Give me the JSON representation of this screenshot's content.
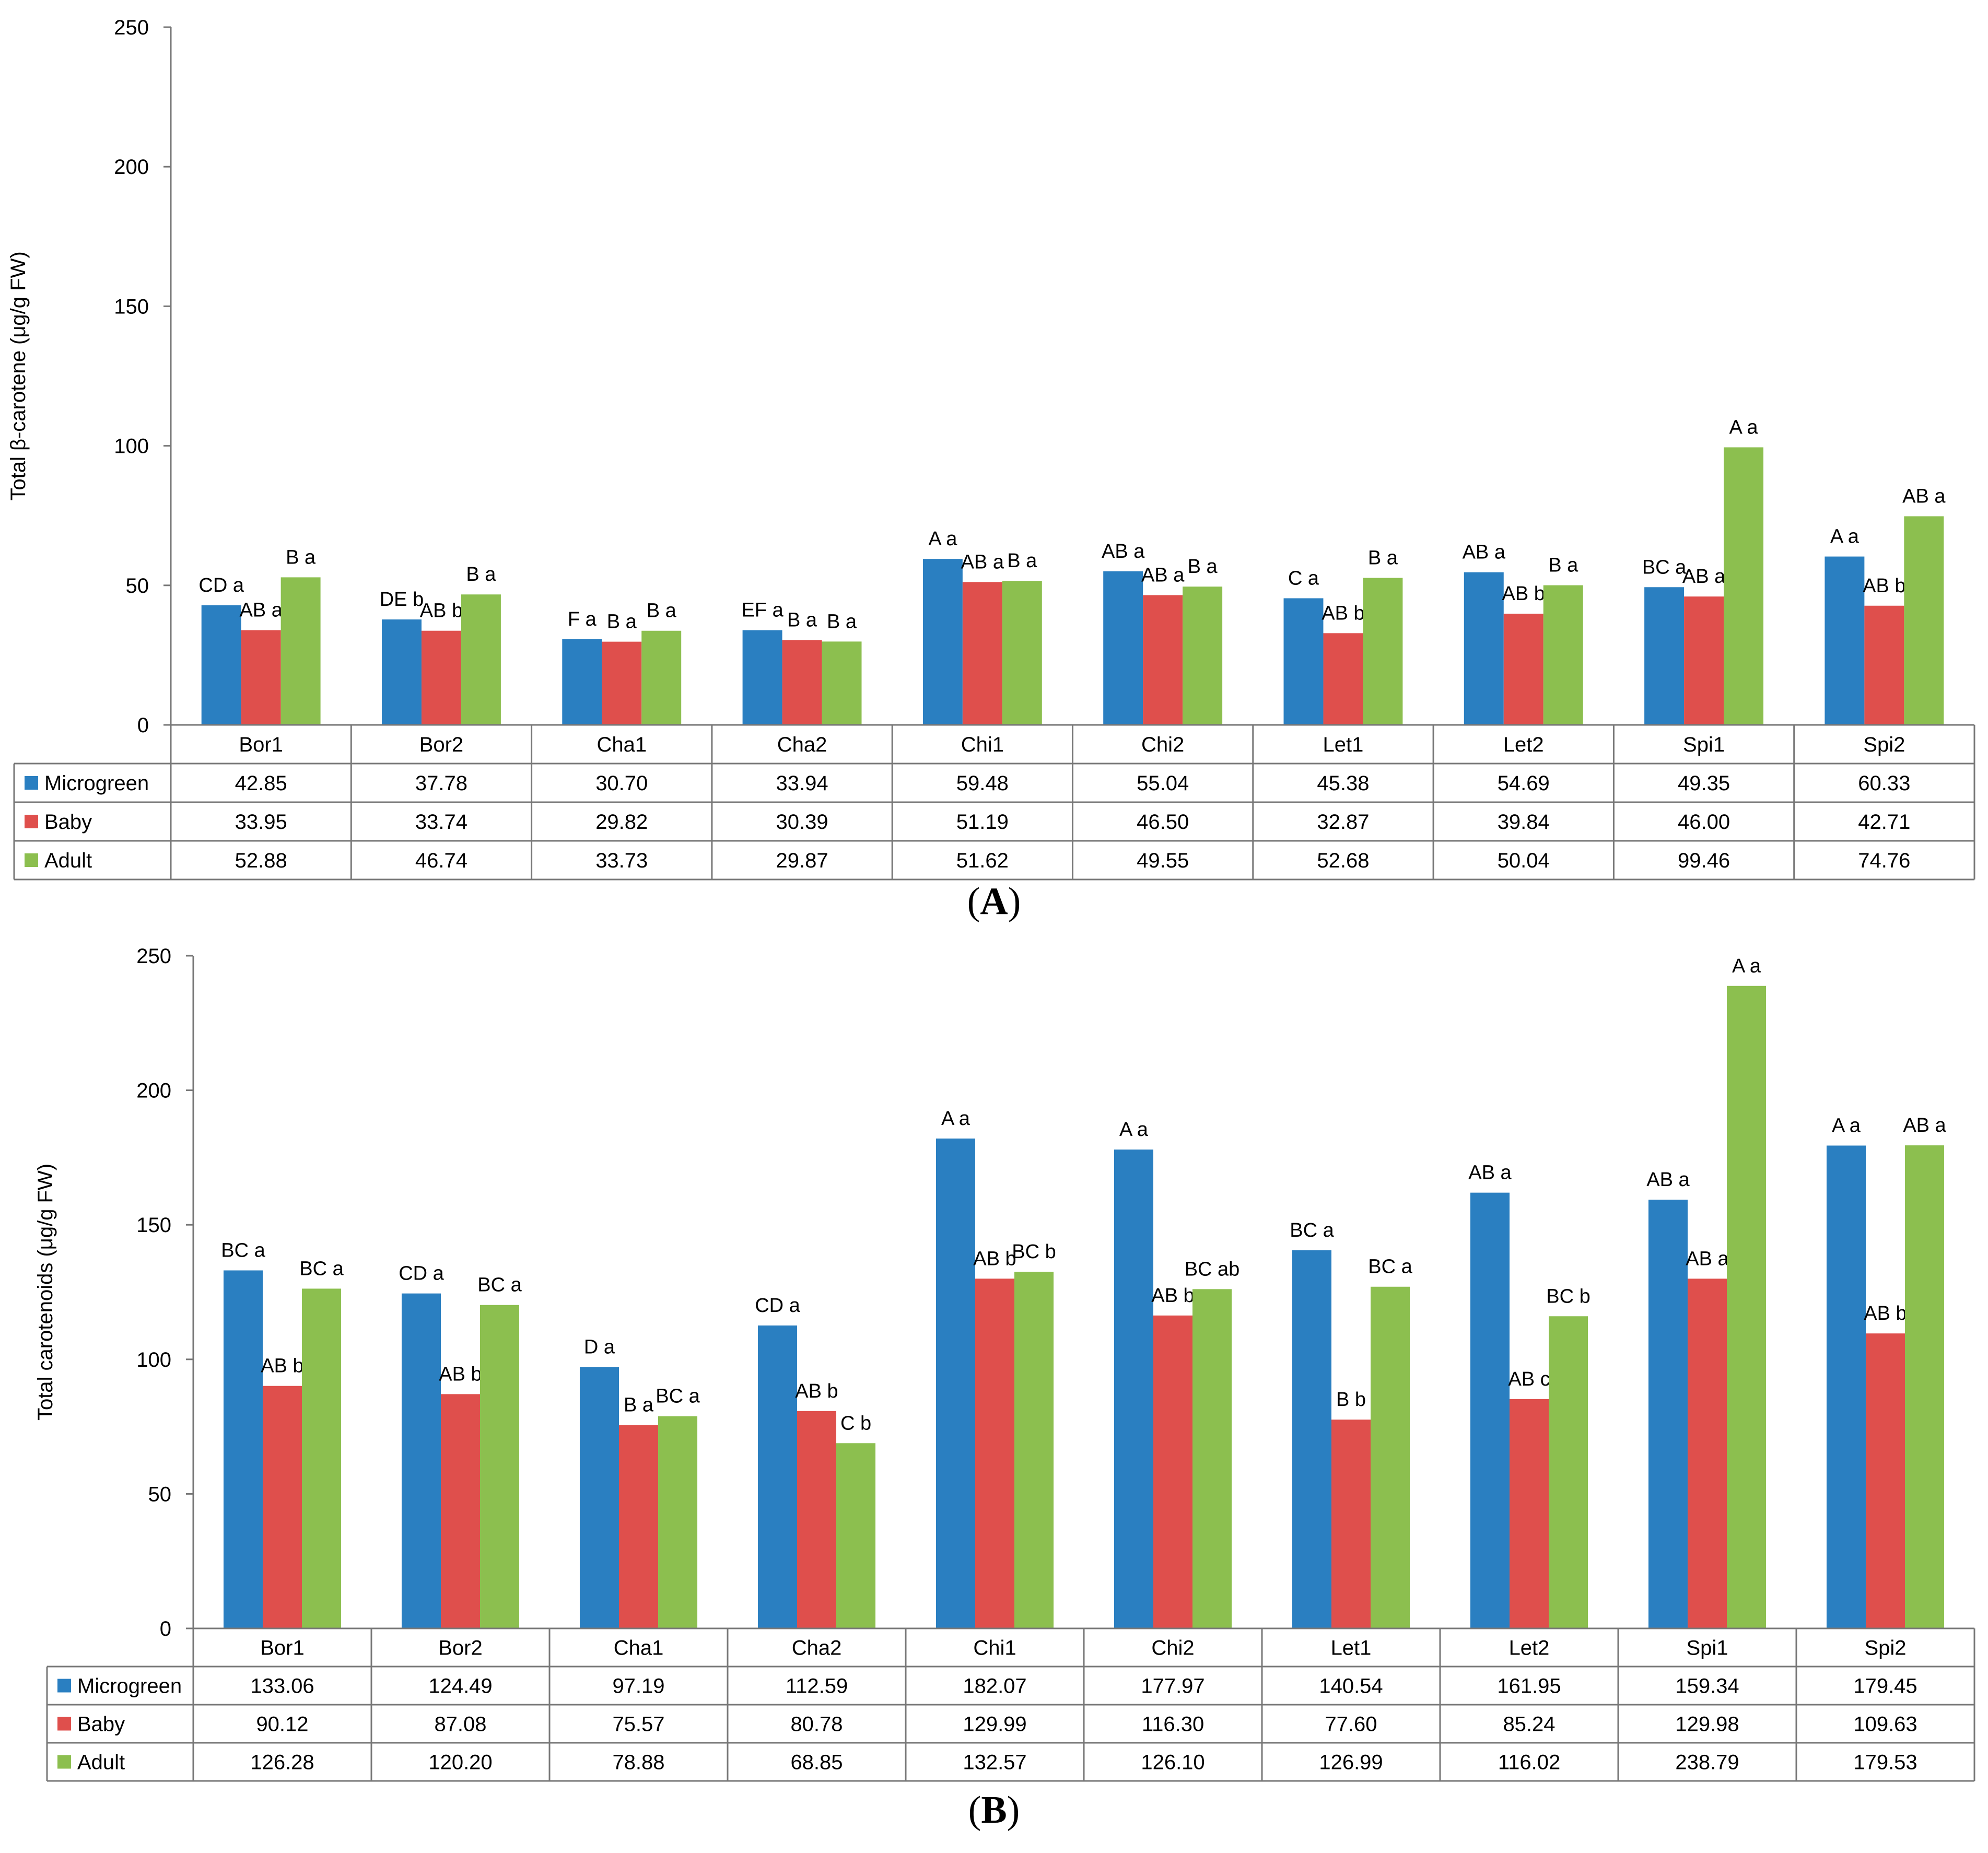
{
  "chart_data": [
    {
      "type": "bar",
      "panel": "A",
      "caption": {
        "open": "(",
        "letter": "A",
        "close": ")"
      },
      "ylabel": "Total β-carotene (μg/g FW)",
      "ylim": [
        0,
        250
      ],
      "yticks": [
        0,
        50,
        100,
        150,
        200,
        250
      ],
      "categories": [
        "Bor1",
        "Bor2",
        "Cha1",
        "Cha2",
        "Chi1",
        "Chi2",
        "Let1",
        "Let2",
        "Spi1",
        "Spi2"
      ],
      "series": [
        {
          "name": "Microgreen",
          "color": "#2a7fc1",
          "values": [
            42.85,
            37.78,
            30.7,
            33.94,
            59.48,
            55.04,
            45.38,
            54.69,
            49.35,
            60.33
          ],
          "value_labels": [
            "42.85",
            "37.78",
            "30.70",
            "33.94",
            "59.48",
            "55.04",
            "45.38",
            "54.69",
            "49.35",
            "60.33"
          ],
          "annotations": [
            "CD a",
            "DE b",
            "F a",
            "EF a",
            "A a",
            "AB a",
            "C a",
            "AB a",
            "BC a",
            "A a"
          ]
        },
        {
          "name": "Baby",
          "color": "#df4f4c",
          "values": [
            33.95,
            33.74,
            29.82,
            30.39,
            51.19,
            46.5,
            32.87,
            39.84,
            46.0,
            42.71
          ],
          "value_labels": [
            "33.95",
            "33.74",
            "29.82",
            "30.39",
            "51.19",
            "46.50",
            "32.87",
            "39.84",
            "46.00",
            "42.71"
          ],
          "annotations": [
            "AB a",
            "AB b",
            "B a",
            "B a",
            "AB a",
            "AB a",
            "AB b",
            "AB b",
            "AB a",
            "AB b"
          ]
        },
        {
          "name": "Adult",
          "color": "#8cbf4f",
          "values": [
            52.88,
            46.74,
            33.73,
            29.87,
            51.62,
            49.55,
            52.68,
            50.04,
            99.46,
            74.76
          ],
          "value_labels": [
            "52.88",
            "46.74",
            "33.73",
            "29.87",
            "51.62",
            "49.55",
            "52.68",
            "50.04",
            "99.46",
            "74.76"
          ],
          "annotations": [
            "B a",
            "B a",
            "B a",
            "B a",
            "B a",
            "B a",
            "B a",
            "B a",
            "A a",
            "AB a"
          ]
        }
      ]
    },
    {
      "type": "bar",
      "panel": "B",
      "caption": {
        "open": "(",
        "letter": "B",
        "close": ")"
      },
      "ylabel": "Total carotenoids (μg/g FW)",
      "ylim": [
        0,
        250
      ],
      "yticks": [
        0,
        50,
        100,
        150,
        200,
        250
      ],
      "categories": [
        "Bor1",
        "Bor2",
        "Cha1",
        "Cha2",
        "Chi1",
        "Chi2",
        "Let1",
        "Let2",
        "Spi1",
        "Spi2"
      ],
      "series": [
        {
          "name": "Microgreen",
          "color": "#2a7fc1",
          "values": [
            133.06,
            124.49,
            97.19,
            112.59,
            182.07,
            177.97,
            140.54,
            161.95,
            159.34,
            179.45
          ],
          "value_labels": [
            "133.06",
            "124.49",
            "97.19",
            "112.59",
            "182.07",
            "177.97",
            "140.54",
            "161.95",
            "159.34",
            "179.45"
          ],
          "annotations": [
            "BC a",
            "CD a",
            "D a",
            "CD a",
            "A a",
            "A a",
            "BC a",
            "AB a",
            "AB a",
            "A a"
          ]
        },
        {
          "name": "Baby",
          "color": "#df4f4c",
          "values": [
            90.12,
            87.08,
            75.57,
            80.78,
            129.99,
            116.3,
            77.6,
            85.24,
            129.98,
            109.63
          ],
          "value_labels": [
            "90.12",
            "87.08",
            "75.57",
            "80.78",
            "129.99",
            "116.30",
            "77.60",
            "85.24",
            "129.98",
            "109.63"
          ],
          "annotations": [
            "AB b",
            "AB b",
            "B a",
            "AB b",
            "AB b",
            "AB b",
            "B b",
            "AB c",
            "AB a",
            "AB b"
          ]
        },
        {
          "name": "Adult",
          "color": "#8cbf4f",
          "values": [
            126.28,
            120.2,
            78.88,
            68.85,
            132.57,
            126.1,
            126.99,
            116.02,
            238.79,
            179.53
          ],
          "value_labels": [
            "126.28",
            "120.20",
            "78.88",
            "68.85",
            "132.57",
            "126.10",
            "126.99",
            "116.02",
            "238.79",
            "179.53"
          ],
          "annotations": [
            "BC a",
            "BC a",
            "BC a",
            "C b",
            "BC b",
            "BC ab",
            "BC a",
            "BC b",
            "A a",
            "AB a"
          ]
        }
      ]
    }
  ]
}
